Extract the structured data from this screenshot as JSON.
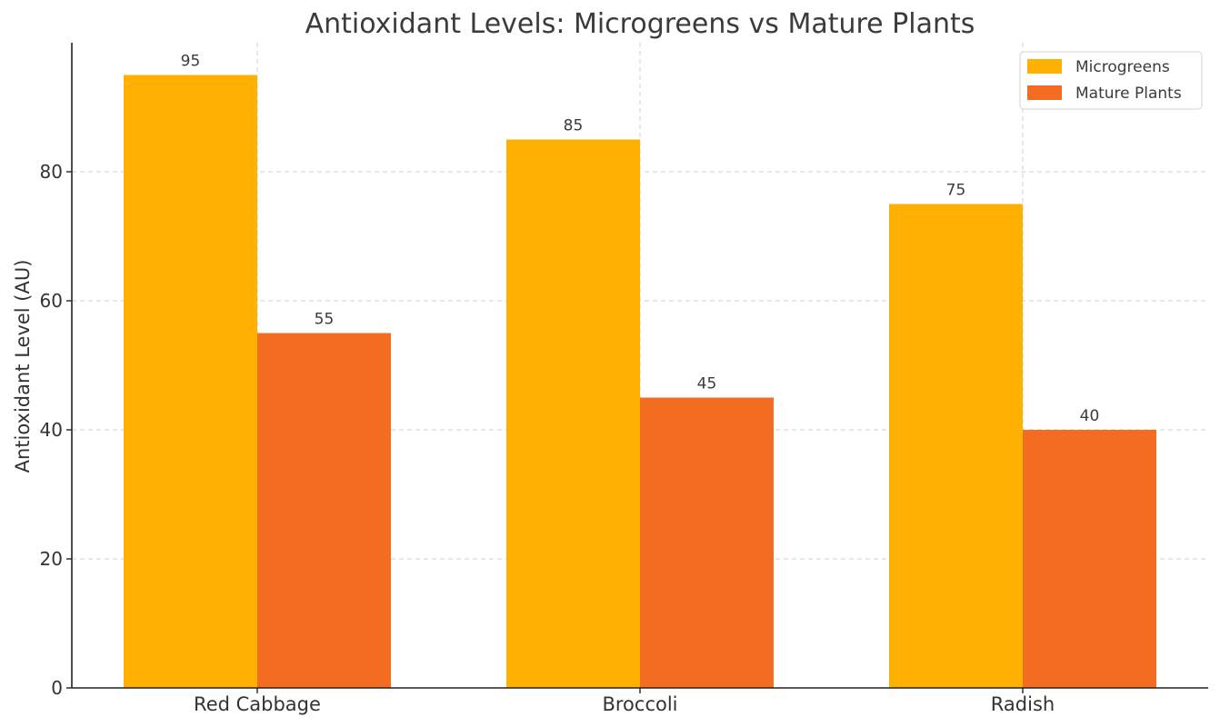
{
  "chart_data": {
    "type": "bar",
    "title": "Antioxidant Levels: Microgreens vs Mature Plants",
    "xlabel": "",
    "ylabel": "Antioxidant Level (AU)",
    "categories": [
      "Red Cabbage",
      "Broccoli",
      "Radish"
    ],
    "series": [
      {
        "name": "Microgreens",
        "values": [
          95,
          85,
          75
        ],
        "color": "#FFB000"
      },
      {
        "name": "Mature Plants",
        "values": [
          55,
          45,
          40
        ],
        "color": "#F36C21"
      }
    ],
    "ylim": [
      0,
      100
    ],
    "yticks": [
      0,
      20,
      40,
      60,
      80
    ],
    "grid": true,
    "legend_position": "top-right",
    "data_labels": true
  }
}
